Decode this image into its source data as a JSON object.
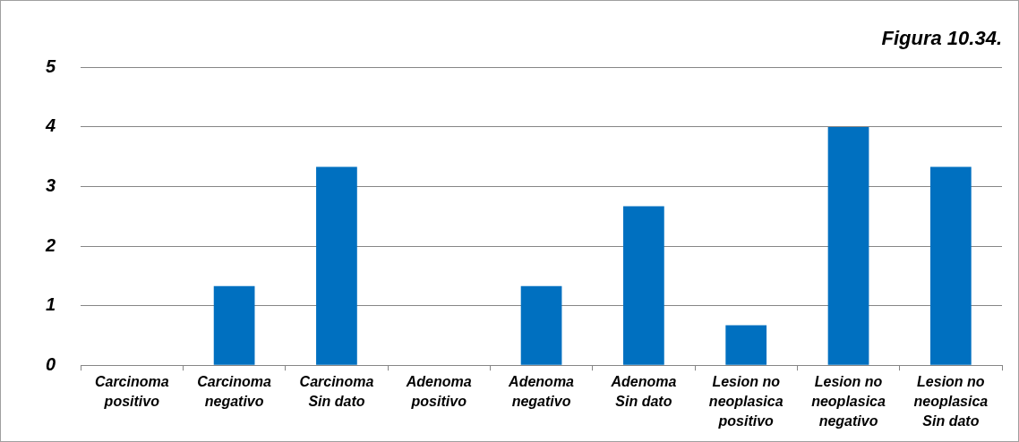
{
  "chart_data": {
    "type": "bar",
    "title": "Figura 10.34.",
    "categories": [
      "Carcinoma\npositivo",
      "Carcinoma\nnegativo",
      "Carcinoma\nSin dato",
      "Adenoma\npositivo",
      "Adenoma\nnegativo",
      "Adenoma\nSin dato",
      "Lesion no\nneoplasica\npositivo",
      "Lesion no\nneoplasica\nnegativo",
      "Lesion no\nneoplasica\nSin dato"
    ],
    "values": [
      0,
      1.33,
      3.33,
      0,
      1.33,
      2.67,
      0.67,
      4,
      3.33
    ],
    "color": "#0070c0",
    "ylim": [
      0,
      5
    ],
    "yticks": [
      0,
      1,
      2,
      3,
      4,
      5
    ],
    "grid": "y",
    "legend": false
  }
}
